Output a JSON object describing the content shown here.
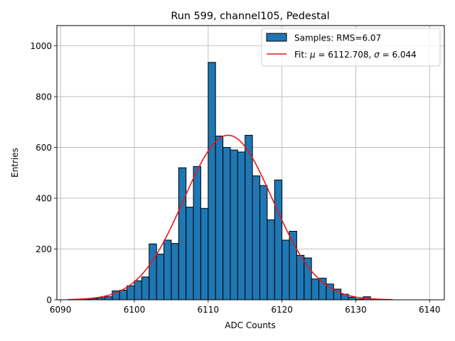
{
  "chart_data": {
    "type": "bar",
    "title": "Run 599, channel105, Pedestal",
    "xlabel": "ADC Counts",
    "ylabel": "Entries",
    "xlim": [
      6089.5,
      6142.0
    ],
    "ylim": [
      0,
      1080
    ],
    "xticks": [
      6090,
      6100,
      6110,
      6120,
      6130,
      6140
    ],
    "yticks": [
      0,
      200,
      400,
      600,
      800,
      1000
    ],
    "grid": true,
    "legend_position": "top-right",
    "bin_width": 1,
    "histogram": {
      "name": "Samples: RMS=6.07",
      "color": "#1f77b4",
      "bin_left_edges": [
        6093,
        6094,
        6095,
        6096,
        6097,
        6098,
        6099,
        6100,
        6101,
        6102,
        6103,
        6104,
        6105,
        6106,
        6107,
        6108,
        6109,
        6110,
        6111,
        6112,
        6113,
        6114,
        6115,
        6116,
        6117,
        6118,
        6119,
        6120,
        6121,
        6122,
        6123,
        6124,
        6125,
        6126,
        6127,
        6128,
        6129,
        6130,
        6131
      ],
      "values": [
        2,
        5,
        8,
        12,
        35,
        38,
        55,
        75,
        90,
        220,
        180,
        235,
        222,
        520,
        365,
        525,
        360,
        935,
        645,
        600,
        590,
        582,
        648,
        488,
        450,
        315,
        472,
        235,
        270,
        175,
        165,
        82,
        85,
        62,
        42,
        22,
        10,
        3,
        12
      ]
    },
    "fit": {
      "name": "Fit: $\\mu$ = 6112.708, $\\sigma$ = 6.044",
      "color": "#e41a1c",
      "mu": 6112.708,
      "sigma": 6.044,
      "amplitude": 648,
      "x_range": [
        6091,
        6135
      ]
    },
    "legend": {
      "samples_label": "Samples: RMS=6.07",
      "fit_label_prefix": "Fit: ",
      "fit_mu_symbol": "μ",
      "fit_mu_value": " = 6112.708, ",
      "fit_sigma_symbol": "σ",
      "fit_sigma_value": " = 6.044"
    }
  }
}
